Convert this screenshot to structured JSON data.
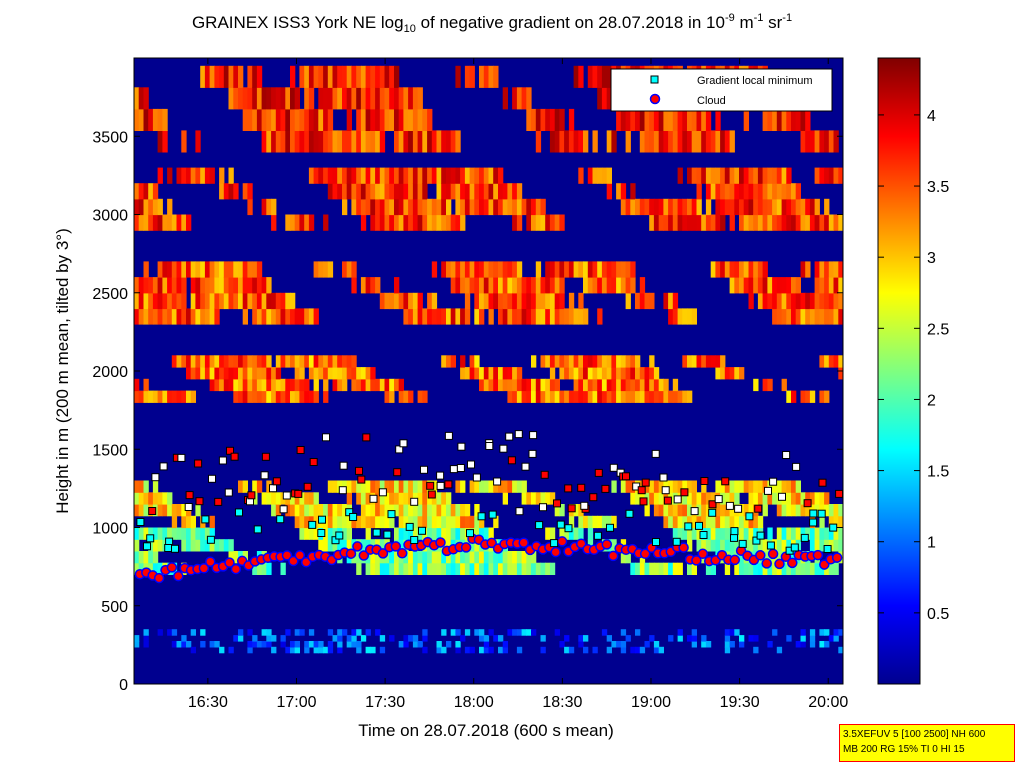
{
  "title": {
    "part1": "GRAINEX ISS3 York NE log",
    "sub": "10",
    "part2": " of negative gradient on 28.07.2018 in 10",
    "sup1": "-9",
    "part3": " m",
    "sup2": "-1",
    "part4": " sr",
    "sup3": "-1"
  },
  "info_box": {
    "line1": "3.5XEFUV 5 [100 2500] NH 600",
    "line2": "MB 200 RG 15% TI 0 HI 15"
  },
  "chart_data": {
    "type": "heatmap",
    "xlabel": "Time on 28.07.2018 (600 s mean)",
    "ylabel": "Height in m (200 m mean, tilted by 3°)",
    "xlim": [
      "16:05",
      "20:05"
    ],
    "ylim": [
      0,
      4000
    ],
    "x_ticks": [
      "16:30",
      "17:00",
      "17:30",
      "18:00",
      "18:30",
      "19:00",
      "19:30",
      "20:00"
    ],
    "y_ticks": [
      0,
      500,
      1000,
      1500,
      2000,
      2500,
      3000,
      3500
    ],
    "colorbar": {
      "colormap": "jet",
      "range": [
        0,
        4.4
      ],
      "ticks": [
        "0.5",
        "1",
        "1.5",
        "2",
        "2.5",
        "3",
        "3.5",
        "4"
      ]
    },
    "legend": {
      "placement": "top-right",
      "entries": [
        {
          "label": "Gradient local minimum",
          "marker": "square",
          "color": "#00ffff"
        },
        {
          "label": "Cloud",
          "marker": "circle",
          "color": "#ff0000",
          "edge": "#0000ff"
        }
      ]
    },
    "background_value": 0.05,
    "field_bands": [
      {
        "y_range": [
          200,
          350
        ],
        "value": 1.0
      },
      {
        "y_range": [
          700,
          1000
        ],
        "value": 2.2
      },
      {
        "y_range": [
          1000,
          1300
        ],
        "value": 2.9
      },
      {
        "y_range": [
          1800,
          2100
        ],
        "value": 3.4
      },
      {
        "y_range": [
          2300,
          2700
        ],
        "value": 3.5
      },
      {
        "y_range": [
          2900,
          3300
        ],
        "value": 3.6
      },
      {
        "y_range": [
          3400,
          3950
        ],
        "value": 3.7
      }
    ],
    "cloud_base_height": [
      700,
      780,
      860,
      900,
      860,
      820,
      780
    ],
    "gradient_local_minimum_height": [
      [
        850,
        1450
      ],
      [
        900,
        1500
      ],
      [
        900,
        1600
      ],
      [
        950,
        1600
      ],
      [
        900,
        1500
      ],
      [
        850,
        1300
      ],
      [
        850,
        1500
      ]
    ]
  }
}
